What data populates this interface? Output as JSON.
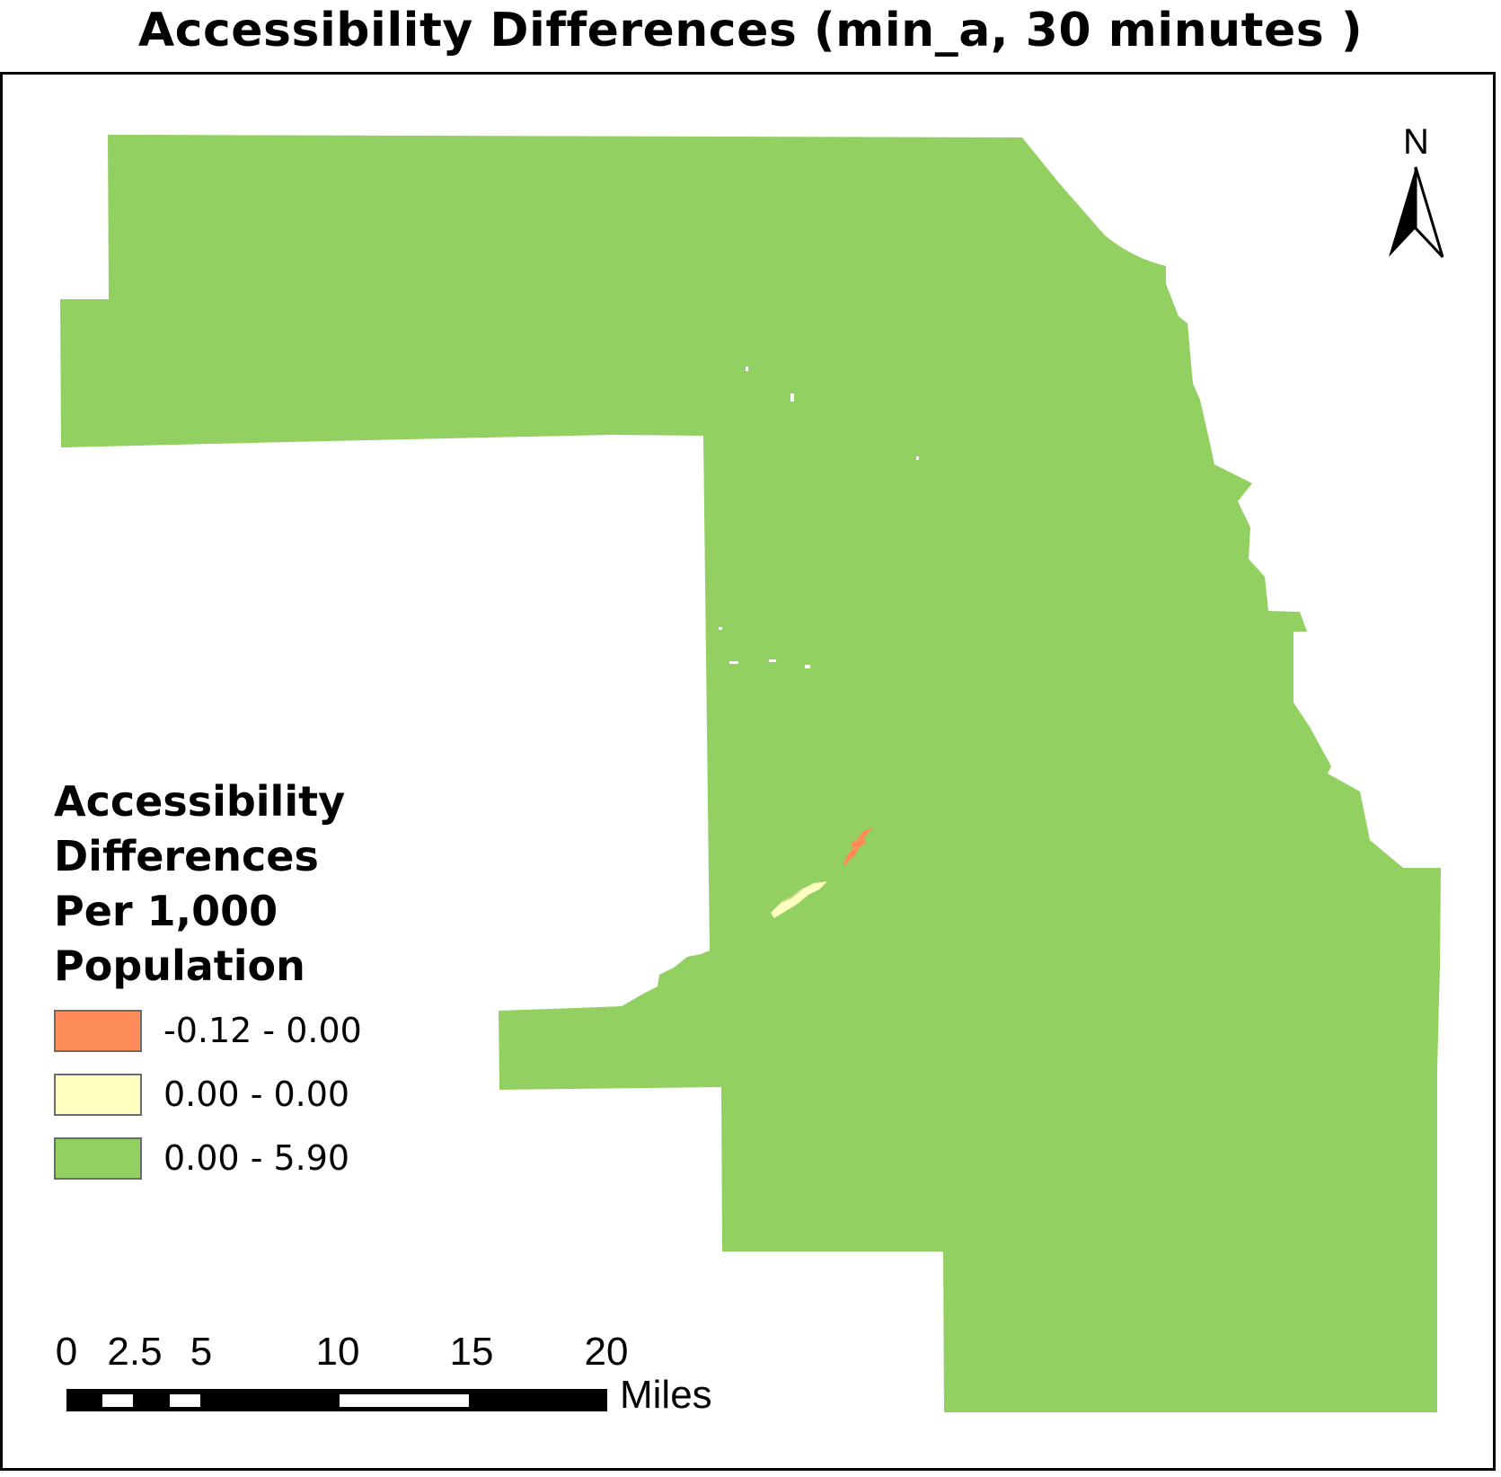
{
  "title": "Accessibility Differences (min_a, 30 minutes )",
  "legend": {
    "title_lines": [
      "Accessibility",
      "Differences",
      "Per 1,000",
      "Population"
    ],
    "items": [
      {
        "label": "-0.12 - 0.00",
        "color": "#FF8C5A"
      },
      {
        "label": "0.00 - 0.00",
        "color": "#FFFFC0"
      },
      {
        "label": "0.00 - 5.90",
        "color": "#92D062"
      }
    ]
  },
  "scale_bar": {
    "labels": [
      "0",
      "2.5",
      "5",
      "10",
      "15",
      "20"
    ],
    "unit": "Miles"
  },
  "north_arrow": {
    "label": "N",
    "icon": "north-arrow-icon"
  },
  "colors": {
    "negative": "#FF8C5A",
    "zero": "#FFFFC0",
    "positive": "#92D062",
    "frame": "#000000"
  }
}
